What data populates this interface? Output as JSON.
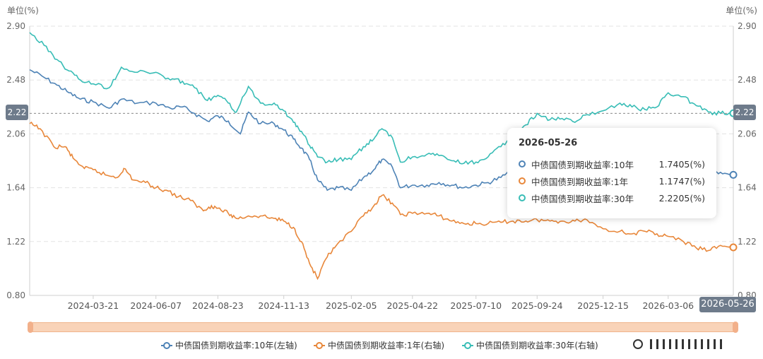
{
  "chart_data": {
    "type": "line",
    "unit_left": "单位(%)",
    "unit_right": "单位(%)",
    "y_ticks": [
      "2.90",
      "2.48",
      "2.06",
      "1.64",
      "1.22",
      "0.80"
    ],
    "ylim": [
      0.8,
      2.9
    ],
    "x_ticks": [
      "2024-03-21",
      "2024-06-07",
      "2024-08-23",
      "2024-11-13",
      "2025-02-05",
      "2025-04-22",
      "2025-07-10",
      "2025-09-24",
      "2025-12-15",
      "2026-03-06"
    ],
    "x_start": "2024-01-02",
    "x_end": "2026-05-26",
    "grid": true,
    "legend_position": "bottom",
    "series": [
      {
        "name": "中债国债到期收益率:10年(左轴)",
        "color": "#4e83b6",
        "points": [
          [
            "2024-01-02",
            2.56
          ],
          [
            "2024-01-20",
            2.5
          ],
          [
            "2024-02-05",
            2.44
          ],
          [
            "2024-02-20",
            2.38
          ],
          [
            "2024-03-05",
            2.33
          ],
          [
            "2024-03-21",
            2.31
          ],
          [
            "2024-04-10",
            2.26
          ],
          [
            "2024-04-25",
            2.33
          ],
          [
            "2024-05-15",
            2.3
          ],
          [
            "2024-06-07",
            2.3
          ],
          [
            "2024-06-25",
            2.26
          ],
          [
            "2024-07-10",
            2.27
          ],
          [
            "2024-07-25",
            2.22
          ],
          [
            "2024-08-10",
            2.16
          ],
          [
            "2024-08-23",
            2.2
          ],
          [
            "2024-09-05",
            2.16
          ],
          [
            "2024-09-20",
            2.06
          ],
          [
            "2024-09-30",
            2.23
          ],
          [
            "2024-10-15",
            2.14
          ],
          [
            "2024-11-01",
            2.14
          ],
          [
            "2024-11-13",
            2.09
          ],
          [
            "2024-11-25",
            2.02
          ],
          [
            "2024-12-05",
            1.95
          ],
          [
            "2024-12-15",
            1.86
          ],
          [
            "2024-12-25",
            1.7
          ],
          [
            "2025-01-06",
            1.62
          ],
          [
            "2025-01-20",
            1.64
          ],
          [
            "2025-02-05",
            1.62
          ],
          [
            "2025-02-20",
            1.72
          ],
          [
            "2025-03-05",
            1.78
          ],
          [
            "2025-03-15",
            1.86
          ],
          [
            "2025-03-28",
            1.8
          ],
          [
            "2025-04-07",
            1.64
          ],
          [
            "2025-04-22",
            1.66
          ],
          [
            "2025-05-10",
            1.66
          ],
          [
            "2025-05-25",
            1.68
          ],
          [
            "2025-06-10",
            1.66
          ],
          [
            "2025-06-25",
            1.64
          ],
          [
            "2025-07-10",
            1.66
          ],
          [
            "2025-07-25",
            1.68
          ],
          [
            "2025-08-10",
            1.72
          ],
          [
            "2025-08-25",
            1.78
          ],
          [
            "2025-09-10",
            1.8
          ],
          [
            "2025-09-24",
            1.85
          ],
          [
            "2025-10-10",
            1.8
          ],
          [
            "2025-10-25",
            1.83
          ],
          [
            "2025-11-10",
            1.82
          ],
          [
            "2025-11-25",
            1.84
          ],
          [
            "2025-12-15",
            1.82
          ],
          [
            "2026-01-05",
            1.85
          ],
          [
            "2026-01-20",
            1.83
          ],
          [
            "2026-02-05",
            1.8
          ],
          [
            "2026-02-20",
            1.79
          ],
          [
            "2026-03-06",
            1.8
          ],
          [
            "2026-03-25",
            1.78
          ],
          [
            "2026-04-10",
            1.77
          ],
          [
            "2026-04-25",
            1.76
          ],
          [
            "2026-05-10",
            1.76
          ],
          [
            "2026-05-26",
            1.7405
          ]
        ]
      },
      {
        "name": "中债国债到期收益率:1年(右轴)",
        "color": "#e8873a",
        "points": [
          [
            "2024-01-02",
            2.14
          ],
          [
            "2024-01-15",
            2.1
          ],
          [
            "2024-02-01",
            1.96
          ],
          [
            "2024-02-15",
            1.96
          ],
          [
            "2024-02-25",
            1.87
          ],
          [
            "2024-03-10",
            1.79
          ],
          [
            "2024-03-21",
            1.78
          ],
          [
            "2024-04-05",
            1.74
          ],
          [
            "2024-04-20",
            1.72
          ],
          [
            "2024-04-28",
            1.79
          ],
          [
            "2024-05-10",
            1.7
          ],
          [
            "2024-05-25",
            1.68
          ],
          [
            "2024-06-07",
            1.64
          ],
          [
            "2024-06-20",
            1.62
          ],
          [
            "2024-07-05",
            1.57
          ],
          [
            "2024-07-20",
            1.54
          ],
          [
            "2024-08-05",
            1.46
          ],
          [
            "2024-08-15",
            1.5
          ],
          [
            "2024-08-23",
            1.48
          ],
          [
            "2024-09-05",
            1.44
          ],
          [
            "2024-09-15",
            1.4
          ],
          [
            "2024-09-30",
            1.42
          ],
          [
            "2024-10-15",
            1.42
          ],
          [
            "2024-11-01",
            1.4
          ],
          [
            "2024-11-13",
            1.38
          ],
          [
            "2024-11-25",
            1.33
          ],
          [
            "2024-12-05",
            1.22
          ],
          [
            "2024-12-15",
            1.05
          ],
          [
            "2024-12-25",
            0.93
          ],
          [
            "2025-01-06",
            1.1
          ],
          [
            "2025-01-15",
            1.17
          ],
          [
            "2025-02-05",
            1.3
          ],
          [
            "2025-02-20",
            1.42
          ],
          [
            "2025-03-05",
            1.5
          ],
          [
            "2025-03-15",
            1.58
          ],
          [
            "2025-03-28",
            1.52
          ],
          [
            "2025-04-07",
            1.43
          ],
          [
            "2025-04-22",
            1.44
          ],
          [
            "2025-05-10",
            1.44
          ],
          [
            "2025-05-25",
            1.42
          ],
          [
            "2025-06-10",
            1.38
          ],
          [
            "2025-06-25",
            1.36
          ],
          [
            "2025-07-10",
            1.36
          ],
          [
            "2025-07-25",
            1.36
          ],
          [
            "2025-08-10",
            1.37
          ],
          [
            "2025-08-25",
            1.38
          ],
          [
            "2025-09-10",
            1.38
          ],
          [
            "2025-09-24",
            1.39
          ],
          [
            "2025-10-10",
            1.38
          ],
          [
            "2025-10-25",
            1.38
          ],
          [
            "2025-11-10",
            1.38
          ],
          [
            "2025-11-25",
            1.39
          ],
          [
            "2025-12-15",
            1.32
          ],
          [
            "2026-01-05",
            1.3
          ],
          [
            "2026-01-20",
            1.28
          ],
          [
            "2026-02-05",
            1.3
          ],
          [
            "2026-02-20",
            1.28
          ],
          [
            "2026-03-06",
            1.26
          ],
          [
            "2026-03-25",
            1.22
          ],
          [
            "2026-04-10",
            1.17
          ],
          [
            "2026-04-25",
            1.15
          ],
          [
            "2026-05-10",
            1.19
          ],
          [
            "2026-05-26",
            1.1747
          ]
        ]
      },
      {
        "name": "中债国债到期收益率:30年(右轴)",
        "color": "#38bdb6",
        "points": [
          [
            "2024-01-02",
            2.85
          ],
          [
            "2024-01-20",
            2.75
          ],
          [
            "2024-02-05",
            2.64
          ],
          [
            "2024-02-20",
            2.55
          ],
          [
            "2024-03-05",
            2.48
          ],
          [
            "2024-03-21",
            2.45
          ],
          [
            "2024-04-10",
            2.42
          ],
          [
            "2024-04-25",
            2.58
          ],
          [
            "2024-05-15",
            2.54
          ],
          [
            "2024-06-07",
            2.54
          ],
          [
            "2024-06-25",
            2.48
          ],
          [
            "2024-07-10",
            2.47
          ],
          [
            "2024-07-25",
            2.42
          ],
          [
            "2024-08-10",
            2.32
          ],
          [
            "2024-08-23",
            2.36
          ],
          [
            "2024-09-05",
            2.3
          ],
          [
            "2024-09-15",
            2.23
          ],
          [
            "2024-09-30",
            2.43
          ],
          [
            "2024-10-15",
            2.3
          ],
          [
            "2024-11-01",
            2.3
          ],
          [
            "2024-11-13",
            2.24
          ],
          [
            "2024-11-25",
            2.15
          ],
          [
            "2024-12-05",
            2.08
          ],
          [
            "2024-12-15",
            1.97
          ],
          [
            "2024-12-25",
            1.88
          ],
          [
            "2025-01-06",
            1.84
          ],
          [
            "2025-01-20",
            1.86
          ],
          [
            "2025-02-05",
            1.86
          ],
          [
            "2025-02-20",
            1.96
          ],
          [
            "2025-03-05",
            2.02
          ],
          [
            "2025-03-15",
            2.1
          ],
          [
            "2025-03-28",
            2.03
          ],
          [
            "2025-04-07",
            1.84
          ],
          [
            "2025-04-22",
            1.88
          ],
          [
            "2025-05-10",
            1.9
          ],
          [
            "2025-05-25",
            1.89
          ],
          [
            "2025-06-10",
            1.85
          ],
          [
            "2025-06-25",
            1.83
          ],
          [
            "2025-07-10",
            1.84
          ],
          [
            "2025-07-25",
            1.88
          ],
          [
            "2025-08-10",
            1.96
          ],
          [
            "2025-08-25",
            2.04
          ],
          [
            "2025-09-10",
            2.13
          ],
          [
            "2025-09-24",
            2.22
          ],
          [
            "2025-10-10",
            2.17
          ],
          [
            "2025-10-25",
            2.18
          ],
          [
            "2025-11-10",
            2.15
          ],
          [
            "2025-11-25",
            2.21
          ],
          [
            "2025-12-15",
            2.24
          ],
          [
            "2026-01-05",
            2.3
          ],
          [
            "2026-01-20",
            2.27
          ],
          [
            "2026-02-05",
            2.25
          ],
          [
            "2026-02-20",
            2.27
          ],
          [
            "2026-03-06",
            2.38
          ],
          [
            "2026-03-25",
            2.35
          ],
          [
            "2026-04-10",
            2.28
          ],
          [
            "2026-04-25",
            2.23
          ],
          [
            "2026-05-10",
            2.22
          ],
          [
            "2026-05-26",
            2.2205
          ]
        ]
      }
    ],
    "crosshair_value": "2.22",
    "tooltip": {
      "date": "2026-05-26",
      "rows": [
        {
          "name": "中债国债到期收益率:10年",
          "value": "1.7405(%)"
        },
        {
          "name": "中债国债到期收益率:1年",
          "value": "1.1747(%)"
        },
        {
          "name": "中债国债到期收益率:30年",
          "value": "2.2205(%)"
        }
      ]
    }
  }
}
